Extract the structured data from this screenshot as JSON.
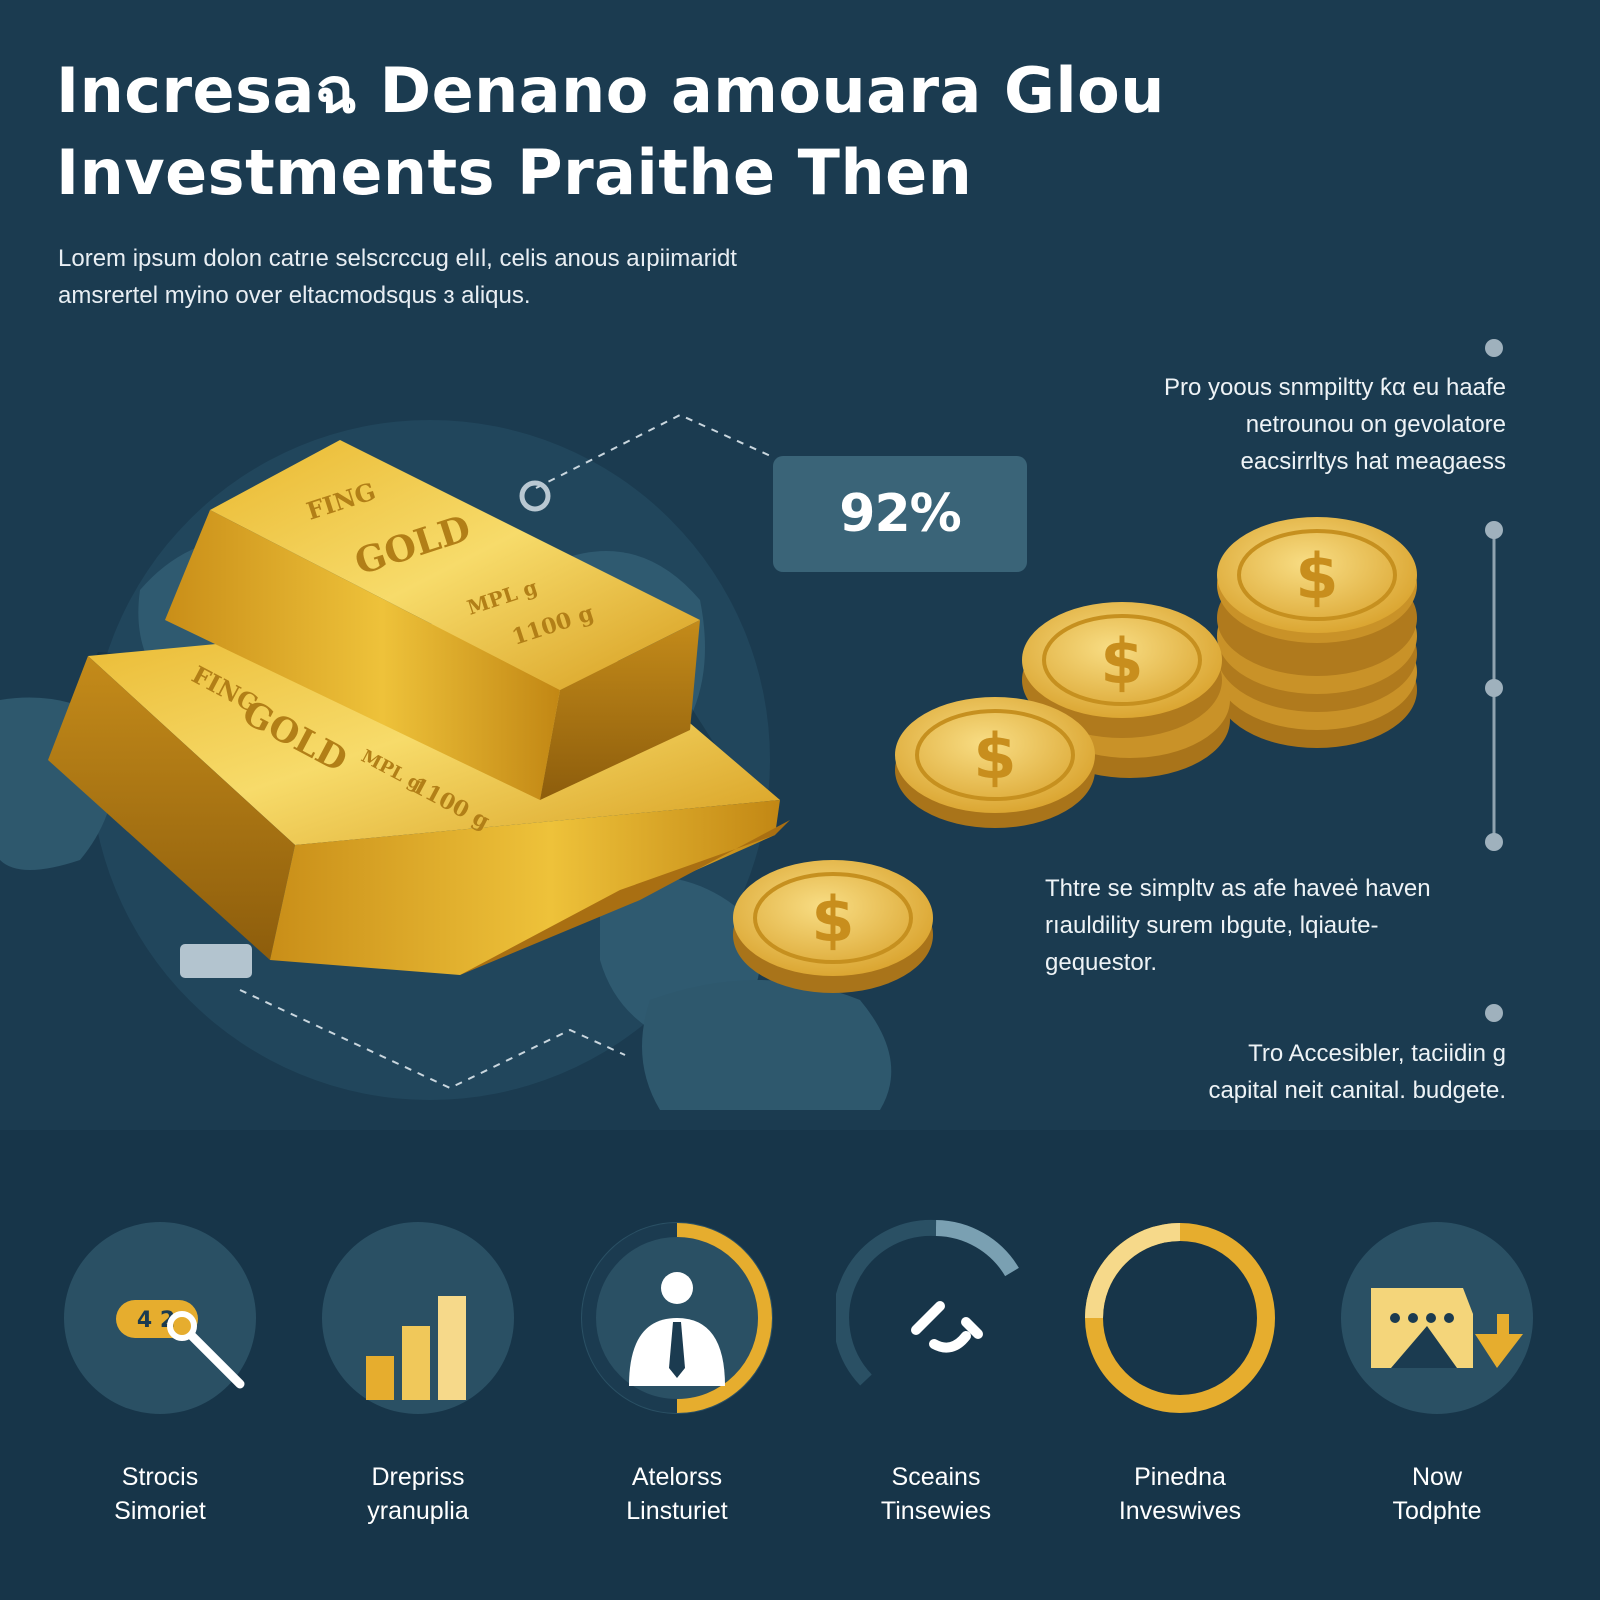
{
  "header": {
    "title_line1": "Incresaฉ Denano amouara Glou",
    "title_line2": "Investments Praithe Then"
  },
  "intro": {
    "line1": "Lorem ipsum dolon catrıe selscrccug elıl, celis anous aıpiimaridt",
    "line2": "amsrertel myino over eltacmodsqus ɜ aliqus."
  },
  "gold_bars": {
    "top_bar": {
      "line1": "FING",
      "line2": "GOLD",
      "line3": "MPL g",
      "line4": "1100 g"
    },
    "bottom_bar": {
      "line1": "FING",
      "line2": "GOLD",
      "line3": "MPL g",
      "line4": "1100 g"
    }
  },
  "coin_symbol": "$",
  "stat": {
    "value": "92%"
  },
  "side_notes": [
    {
      "lines": [
        "Pro yoous snmpiltty ƙα eu haafe",
        "netrounou on gevolatore",
        "eacsirrltys hat meagaess"
      ]
    },
    {
      "lines": [
        "Thtre se simpltv as afe haveė haven",
        "rıauldility surem ıbgute, lqiaute-",
        "gequestor."
      ]
    },
    {
      "lines": [
        "Tro Accesibler, taciidin g",
        "capital neit canital. budgete."
      ]
    }
  ],
  "features": [
    {
      "icon": "magnifier-icon",
      "badge": "4 2",
      "line1": "Strocis",
      "line2": "Simoriet"
    },
    {
      "icon": "bar-chart-icon",
      "line1": "Drepriss",
      "line2": "yranuplia"
    },
    {
      "icon": "person-icon",
      "line1": "Atelorss",
      "line2": "Linsturiet"
    },
    {
      "icon": "arc-arrow-icon",
      "line1": "Sceains",
      "line2": "Tinsewies"
    },
    {
      "icon": "ring-icon",
      "line1": "Pinedna",
      "line2": "Inveswives"
    },
    {
      "icon": "card-arrow-icon",
      "line1": "Now",
      "line2": "Todphte"
    }
  ],
  "colors": {
    "background": "#1b3b50",
    "panel": "#3a6478",
    "gold": "#e3ad2b",
    "gold_light": "#f4d57a",
    "icon_circle": "#2a5064"
  }
}
